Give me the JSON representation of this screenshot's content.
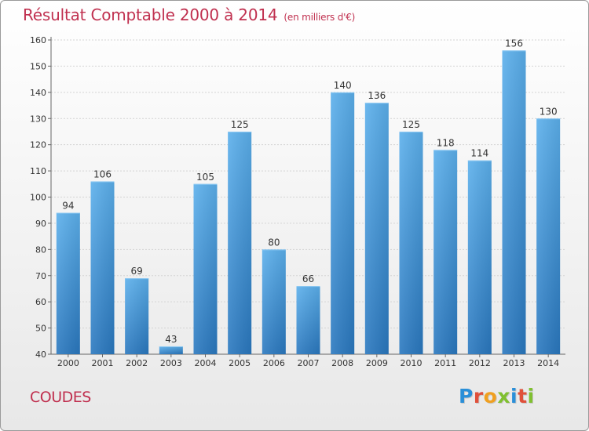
{
  "chart_data": {
    "type": "bar",
    "title": "Résultat Comptable 2000 à 2014",
    "subtitle": "(en milliers d'€)",
    "categories": [
      "2000",
      "2001",
      "2002",
      "2003",
      "2004",
      "2005",
      "2006",
      "2007",
      "2008",
      "2009",
      "2010",
      "2011",
      "2012",
      "2013",
      "2014"
    ],
    "values": [
      94,
      106,
      69,
      43,
      105,
      125,
      80,
      66,
      140,
      136,
      125,
      118,
      114,
      156,
      130
    ],
    "ylim": [
      40,
      160
    ],
    "yticks": [
      40,
      50,
      60,
      70,
      80,
      90,
      100,
      110,
      120,
      130,
      140,
      150,
      160
    ],
    "grid": true,
    "bar_color": "#3a8fd6"
  },
  "footer": {
    "commune": "COUDES",
    "logo_letters": [
      "P",
      "r",
      "o",
      "x",
      "i",
      "t",
      "i"
    ],
    "logo_colors": [
      "#2a8fd8",
      "#e0503a",
      "#f0a020",
      "#80c030",
      "#2a8fd8",
      "#e0503a",
      "#80c030"
    ]
  }
}
